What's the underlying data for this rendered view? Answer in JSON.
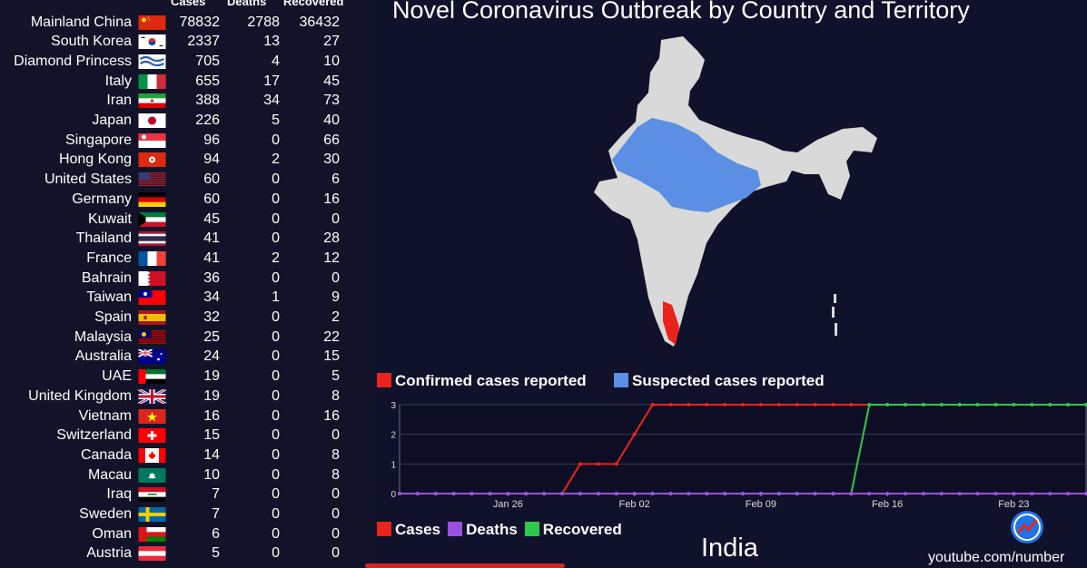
{
  "title": "Novel Coronavirus Outbreak by Country and Territory",
  "table": {
    "headers": {
      "cases": "Cases",
      "deaths": "Deaths",
      "recovered": "Recovered"
    },
    "rows": [
      {
        "country": "Mainland China",
        "cases": "78832",
        "deaths": "2788",
        "recovered": "36432",
        "flag": "china-flag"
      },
      {
        "country": "South Korea",
        "cases": "2337",
        "deaths": "13",
        "recovered": "27",
        "flag": "south-korea-flag"
      },
      {
        "country": "Diamond Princess",
        "cases": "705",
        "deaths": "4",
        "recovered": "10",
        "flag": "diamond-princess-flag"
      },
      {
        "country": "Italy",
        "cases": "655",
        "deaths": "17",
        "recovered": "45",
        "flag": "italy-flag"
      },
      {
        "country": "Iran",
        "cases": "388",
        "deaths": "34",
        "recovered": "73",
        "flag": "iran-flag"
      },
      {
        "country": "Japan",
        "cases": "226",
        "deaths": "5",
        "recovered": "40",
        "flag": "japan-flag"
      },
      {
        "country": "Singapore",
        "cases": "96",
        "deaths": "0",
        "recovered": "66",
        "flag": "singapore-flag"
      },
      {
        "country": "Hong Kong",
        "cases": "94",
        "deaths": "2",
        "recovered": "30",
        "flag": "hong-kong-flag"
      },
      {
        "country": "United States",
        "cases": "60",
        "deaths": "0",
        "recovered": "6",
        "flag": "usa-flag"
      },
      {
        "country": "Germany",
        "cases": "60",
        "deaths": "0",
        "recovered": "16",
        "flag": "germany-flag"
      },
      {
        "country": "Kuwait",
        "cases": "45",
        "deaths": "0",
        "recovered": "0",
        "flag": "kuwait-flag"
      },
      {
        "country": "Thailand",
        "cases": "41",
        "deaths": "0",
        "recovered": "28",
        "flag": "thailand-flag"
      },
      {
        "country": "France",
        "cases": "41",
        "deaths": "2",
        "recovered": "12",
        "flag": "france-flag"
      },
      {
        "country": "Bahrain",
        "cases": "36",
        "deaths": "0",
        "recovered": "0",
        "flag": "bahrain-flag"
      },
      {
        "country": "Taiwan",
        "cases": "34",
        "deaths": "1",
        "recovered": "9",
        "flag": "taiwan-flag"
      },
      {
        "country": "Spain",
        "cases": "32",
        "deaths": "0",
        "recovered": "2",
        "flag": "spain-flag"
      },
      {
        "country": "Malaysia",
        "cases": "25",
        "deaths": "0",
        "recovered": "22",
        "flag": "malaysia-flag"
      },
      {
        "country": "Australia",
        "cases": "24",
        "deaths": "0",
        "recovered": "15",
        "flag": "australia-flag"
      },
      {
        "country": "UAE",
        "cases": "19",
        "deaths": "0",
        "recovered": "5",
        "flag": "uae-flag"
      },
      {
        "country": "United Kingdom",
        "cases": "19",
        "deaths": "0",
        "recovered": "8",
        "flag": "uk-flag"
      },
      {
        "country": "Vietnam",
        "cases": "16",
        "deaths": "0",
        "recovered": "16",
        "flag": "vietnam-flag"
      },
      {
        "country": "Switzerland",
        "cases": "15",
        "deaths": "0",
        "recovered": "0",
        "flag": "switzerland-flag"
      },
      {
        "country": "Canada",
        "cases": "14",
        "deaths": "0",
        "recovered": "8",
        "flag": "canada-flag"
      },
      {
        "country": "Macau",
        "cases": "10",
        "deaths": "0",
        "recovered": "8",
        "flag": "macau-flag"
      },
      {
        "country": "Iraq",
        "cases": "7",
        "deaths": "0",
        "recovered": "0",
        "flag": "iraq-flag"
      },
      {
        "country": "Sweden",
        "cases": "7",
        "deaths": "0",
        "recovered": "0",
        "flag": "sweden-flag"
      },
      {
        "country": "Oman",
        "cases": "6",
        "deaths": "0",
        "recovered": "0",
        "flag": "oman-flag"
      },
      {
        "country": "Austria",
        "cases": "5",
        "deaths": "0",
        "recovered": "0",
        "flag": "austria-flag"
      }
    ]
  },
  "map": {
    "country": "India",
    "legend": [
      {
        "label": "Confirmed cases reported",
        "color": "#e8241d"
      },
      {
        "label": "Suspected cases reported",
        "color": "#5b8fe3"
      }
    ],
    "colors": {
      "base": "#d9d9d9",
      "suspected": "#5b8fe3",
      "confirmed": "#e8241d"
    }
  },
  "chart_data": {
    "type": "line",
    "title": "",
    "xlabel": "",
    "ylabel": "",
    "x_ticks": [
      "Jan 26",
      "Feb 02",
      "Feb 09",
      "Feb 16",
      "Feb 23"
    ],
    "ylim": [
      0,
      3
    ],
    "y_ticks": [
      "0",
      "1",
      "2",
      "3"
    ],
    "x_start": "Jan 20",
    "x_end": "Feb 27",
    "series": [
      {
        "name": "Cases",
        "color": "#e8241d",
        "dates": [
          "Jan 20",
          "Jan 29",
          "Jan 30",
          "Feb 01",
          "Feb 02",
          "Feb 03",
          "Feb 27"
        ],
        "values": [
          0,
          0,
          1,
          1,
          2,
          3,
          3
        ]
      },
      {
        "name": "Deaths",
        "color": "#9b51e0",
        "dates": [
          "Jan 20",
          "Feb 27"
        ],
        "values": [
          0,
          0
        ]
      },
      {
        "name": "Recovered",
        "color": "#2ec84a",
        "dates": [
          "Jan 20",
          "Feb 14",
          "Feb 15",
          "Feb 27"
        ],
        "values": [
          0,
          0,
          3,
          3
        ]
      }
    ],
    "grid": true,
    "legend_position": "bottom-left"
  },
  "credit": "youtube.com/number"
}
